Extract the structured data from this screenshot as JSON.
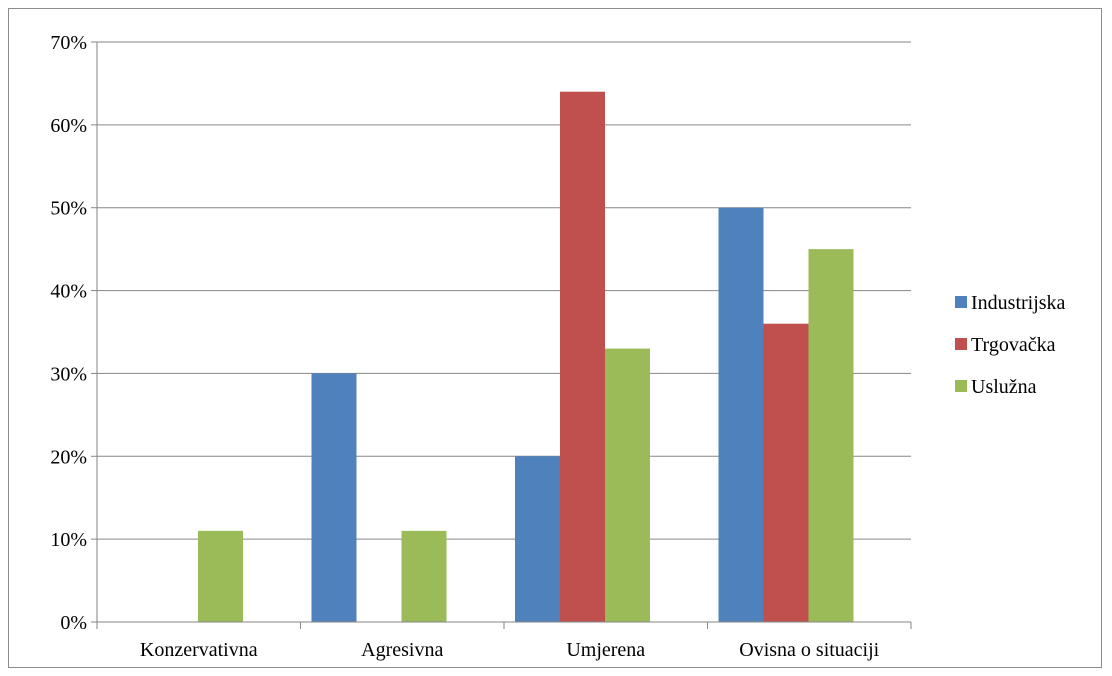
{
  "chart_data": {
    "type": "bar",
    "categories": [
      "Konzervativna",
      "Agresivna",
      "Umjerena",
      "Ovisna o situaciji"
    ],
    "series": [
      {
        "name": "Industrijska",
        "color": "#4f81bd",
        "values": [
          0,
          30,
          20,
          50
        ]
      },
      {
        "name": "Trgovačka",
        "color": "#c0504d",
        "values": [
          0,
          0,
          64,
          36
        ]
      },
      {
        "name": "Uslužna",
        "color": "#9bbb59",
        "values": [
          11,
          11,
          33,
          45
        ]
      }
    ],
    "ylim": [
      0,
      70
    ],
    "yticks": [
      "0%",
      "10%",
      "20%",
      "30%",
      "40%",
      "50%",
      "60%",
      "70%"
    ],
    "ytick_values": [
      0,
      10,
      20,
      30,
      40,
      50,
      60,
      70
    ],
    "grid": true,
    "legend_position": "right",
    "title": "",
    "xlabel": "",
    "ylabel": ""
  }
}
